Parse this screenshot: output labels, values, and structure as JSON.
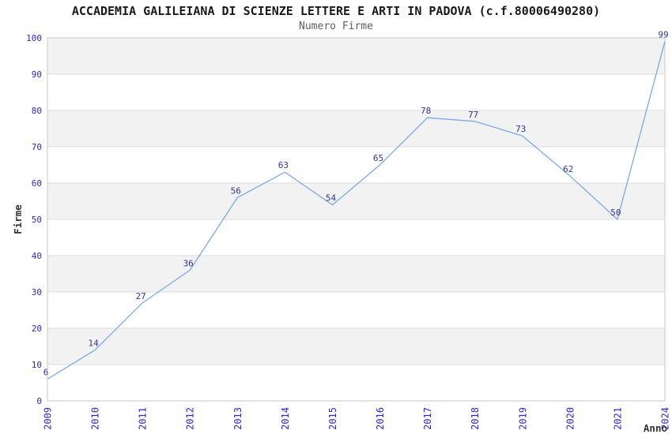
{
  "chart_data": {
    "type": "line",
    "title": "ACCADEMIA GALILEIANA DI SCIENZE LETTERE E ARTI IN PADOVA (c.f.80006490280)",
    "subtitle": "Numero Firme",
    "xlabel": "Anno",
    "ylabel": "Firme",
    "categories": [
      "2009",
      "2010",
      "2011",
      "2012",
      "2013",
      "2014",
      "2015",
      "2016",
      "2017",
      "2018",
      "2019",
      "2020",
      "2021",
      "2024"
    ],
    "values": [
      6,
      14,
      27,
      36,
      56,
      63,
      54,
      65,
      78,
      77,
      73,
      62,
      50,
      99
    ],
    "ylim": [
      0,
      100
    ],
    "ytick_step": 10,
    "grid": "horizontal",
    "banded_background": true,
    "legend_position": "none",
    "data_labels_visible": true,
    "colors": {
      "line": "#7aaae8",
      "tick_label": "#2a2ad2",
      "data_label": "#333399",
      "band_fill": "#f2f2f2",
      "gridline": "#dcdcdc",
      "plot_border": "#c8c8c8",
      "title": "#1a1a1a",
      "subtitle": "#5f5f5f",
      "axis_title": "#333333",
      "background": "#ffffff"
    }
  }
}
